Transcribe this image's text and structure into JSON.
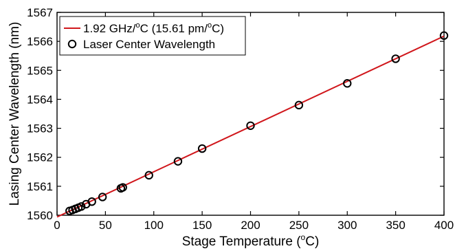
{
  "chart_data": {
    "type": "scatter",
    "xlabel": "Stage Temperature (",
    "xlabel_sup": "o",
    "xlabel_end": "C)",
    "ylabel": "Lasing Center Wavelength (nm)",
    "xlim": [
      0,
      400
    ],
    "ylim": [
      1560,
      1567
    ],
    "xticks": [
      "0",
      "50",
      "100",
      "150",
      "200",
      "250",
      "300",
      "350",
      "400"
    ],
    "yticks": [
      "1560",
      "1561",
      "1562",
      "1563",
      "1564",
      "1565",
      "1566",
      "1567"
    ],
    "grid": false,
    "legend_position": "top-left",
    "series": [
      {
        "name": "1.92 GHz/",
        "name_sup": "o",
        "name_end": "C (15.61 pm/",
        "name_sup2": "o",
        "name_end2": "C)",
        "type": "line",
        "color": "#d0161b",
        "x": [
          0,
          400
        ],
        "y": [
          1559.94,
          1566.18
        ]
      },
      {
        "name": "Laser Center Wavelength",
        "type": "scatter",
        "marker": "open-circle",
        "color": "#000000",
        "x": [
          13,
          16,
          19,
          22,
          25,
          30,
          36,
          47,
          66,
          68,
          95,
          125,
          150,
          200,
          250,
          300,
          350,
          400
        ],
        "y": [
          1560.15,
          1560.18,
          1560.22,
          1560.26,
          1560.3,
          1560.38,
          1560.47,
          1560.63,
          1560.93,
          1560.96,
          1561.38,
          1561.86,
          1562.3,
          1563.09,
          1563.8,
          1564.55,
          1565.4,
          1566.2
        ]
      }
    ]
  }
}
